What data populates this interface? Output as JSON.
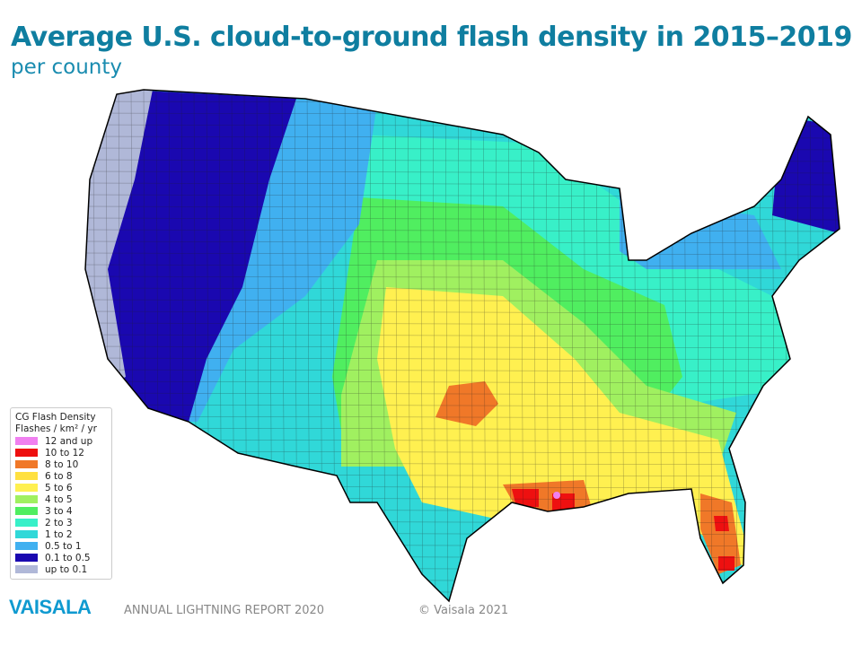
{
  "header": {
    "title": "Average U.S. cloud-to-ground flash density in 2015–2019",
    "subtitle": "per county"
  },
  "legend": {
    "title": "CG Flash Density",
    "units": "Flashes / km² / yr",
    "items": [
      {
        "label": "12 and up",
        "color": "#f080f0"
      },
      {
        "label": "10 to 12",
        "color": "#ee1010"
      },
      {
        "label": "8 to 10",
        "color": "#f07828"
      },
      {
        "label": "6 to 8",
        "color": "#ffe040"
      },
      {
        "label": "5 to 6",
        "color": "#fff050"
      },
      {
        "label": "4 to 5",
        "color": "#a0f060"
      },
      {
        "label": "3 to 4",
        "color": "#50ee60"
      },
      {
        "label": "2 to 3",
        "color": "#38f0c8"
      },
      {
        "label": "1 to 2",
        "color": "#30d8d8"
      },
      {
        "label": "0.5 to 1",
        "color": "#40b0f0"
      },
      {
        "label": "0.1 to 0.5",
        "color": "#1a08b0"
      },
      {
        "label": "up to 0.1",
        "color": "#b0b8d8"
      }
    ]
  },
  "footer": {
    "logo": "VAISALA",
    "report": "ANNUAL LIGHTNING REPORT 2020",
    "copyright": "© Vaisala 2021"
  }
}
